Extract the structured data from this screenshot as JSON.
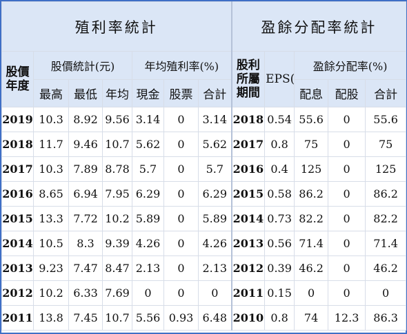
{
  "headers": {
    "dividend_title": "殖利率統計",
    "payout_title": "盈餘分配率統計",
    "year_label": "股價年度",
    "price_stats_label": "股價統計(元)",
    "yield_label": "年均殖利率(%)",
    "profit_year_label": "股利所屬期間",
    "eps_label": "EPS(元)",
    "payout_label": "盈餘分配率(%)",
    "high": "最高",
    "low": "最低",
    "avg": "年均",
    "cash": "現金",
    "stock": "股票",
    "total": "合計",
    "payout_cash": "配息",
    "payout_stock": "配股",
    "payout_total": "合計"
  },
  "rows": [
    {
      "year": "2019",
      "high": "10.3",
      "low": "8.92",
      "avg": "9.56",
      "cash": "3.14",
      "stock": "0",
      "total": "3.14",
      "period": "2018",
      "eps": "0.54",
      "p_cash": "55.6",
      "p_stock": "0",
      "p_total": "55.6"
    },
    {
      "year": "2018",
      "high": "11.7",
      "low": "9.46",
      "avg": "10.7",
      "cash": "5.62",
      "stock": "0",
      "total": "5.62",
      "period": "2017",
      "eps": "0.8",
      "p_cash": "75",
      "p_stock": "0",
      "p_total": "75"
    },
    {
      "year": "2017",
      "high": "10.3",
      "low": "7.89",
      "avg": "8.78",
      "cash": "5.7",
      "stock": "0",
      "total": "5.7",
      "period": "2016",
      "eps": "0.4",
      "p_cash": "125",
      "p_stock": "0",
      "p_total": "125"
    },
    {
      "year": "2016",
      "high": "8.65",
      "low": "6.94",
      "avg": "7.95",
      "cash": "6.29",
      "stock": "0",
      "total": "6.29",
      "period": "2015",
      "eps": "0.58",
      "p_cash": "86.2",
      "p_stock": "0",
      "p_total": "86.2"
    },
    {
      "year": "2015",
      "high": "13.3",
      "low": "7.72",
      "avg": "10.2",
      "cash": "5.89",
      "stock": "0",
      "total": "5.89",
      "period": "2014",
      "eps": "0.73",
      "p_cash": "82.2",
      "p_stock": "0",
      "p_total": "82.2"
    },
    {
      "year": "2014",
      "high": "10.5",
      "low": "8.3",
      "avg": "9.39",
      "cash": "4.26",
      "stock": "0",
      "total": "4.26",
      "period": "2013",
      "eps": "0.56",
      "p_cash": "71.4",
      "p_stock": "0",
      "p_total": "71.4"
    },
    {
      "year": "2013",
      "high": "9.23",
      "low": "7.47",
      "avg": "8.47",
      "cash": "2.13",
      "stock": "0",
      "total": "2.13",
      "period": "2012",
      "eps": "0.39",
      "p_cash": "46.2",
      "p_stock": "0",
      "p_total": "46.2"
    },
    {
      "year": "2012",
      "high": "10.2",
      "low": "6.33",
      "avg": "7.69",
      "cash": "0",
      "stock": "0",
      "total": "0",
      "period": "2011",
      "eps": "0.15",
      "p_cash": "0",
      "p_stock": "0",
      "p_total": "0"
    },
    {
      "year": "2011",
      "high": "13.8",
      "low": "7.45",
      "avg": "10.7",
      "cash": "5.56",
      "stock": "0.93",
      "total": "6.48",
      "period": "2010",
      "eps": "0.8",
      "p_cash": "74",
      "p_stock": "12.3",
      "p_total": "86.3"
    }
  ]
}
